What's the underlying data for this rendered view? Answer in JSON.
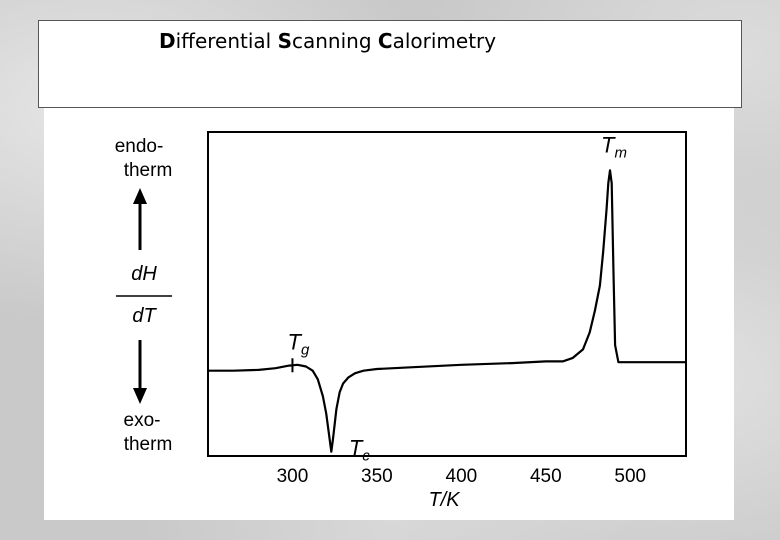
{
  "slide": {
    "title_parts": [
      {
        "bold": "D",
        "rest": "ifferential "
      },
      {
        "bold": "S",
        "rest": "canning "
      },
      {
        "bold": "C",
        "rest": "alorimetry"
      }
    ]
  },
  "chart_data": {
    "type": "line",
    "xlabel": "T/K",
    "ylabel_top": "dH",
    "ylabel_bottom": "dT",
    "endo_label": [
      "endo-",
      "therm"
    ],
    "exo_label": [
      "exo-",
      "therm"
    ],
    "xlim": [
      250,
      533
    ],
    "ylim": [
      -1,
      2.8
    ],
    "x_ticks": [
      300,
      350,
      400,
      450,
      500
    ],
    "y_ticks_shown": false,
    "grid": false,
    "annotations": [
      {
        "label": "Tg",
        "x": 300
      },
      {
        "label": "Tc",
        "x": 323
      },
      {
        "label": "Tm",
        "x": 488
      }
    ],
    "series": [
      {
        "x": [
          250,
          265,
          280,
          290,
          298,
          303,
          308,
          312,
          315,
          318,
          320,
          322,
          323,
          324,
          326,
          328,
          330,
          333,
          337,
          342,
          350,
          370,
          400,
          430,
          450,
          460,
          466,
          472,
          476,
          479,
          482,
          484,
          486,
          487,
          488,
          489,
          490,
          491,
          493,
          500,
          510,
          520,
          533
        ],
        "y": [
          0.0,
          0.0,
          0.01,
          0.03,
          0.06,
          0.07,
          0.05,
          0.0,
          -0.1,
          -0.3,
          -0.5,
          -0.8,
          -0.95,
          -0.8,
          -0.45,
          -0.25,
          -0.15,
          -0.08,
          -0.03,
          0.0,
          0.02,
          0.04,
          0.07,
          0.09,
          0.11,
          0.11,
          0.15,
          0.25,
          0.45,
          0.7,
          1.0,
          1.4,
          1.9,
          2.2,
          2.35,
          2.2,
          1.2,
          0.3,
          0.1,
          0.1,
          0.1,
          0.1,
          0.1
        ]
      }
    ]
  }
}
